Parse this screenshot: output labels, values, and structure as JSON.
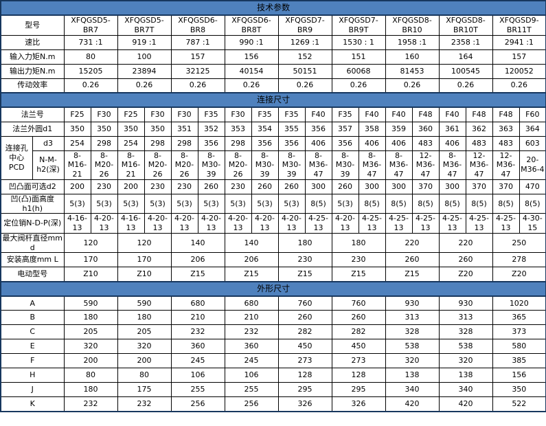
{
  "colors": {
    "section_bg": "#4f81bd",
    "frame_border": "#17375e",
    "grid_border": "#000000",
    "text": "#000000"
  },
  "table": {
    "data_columns": 18,
    "rows": [
      {
        "kind": "section",
        "name": "section-tech-params",
        "label": "技术参数"
      },
      {
        "kind": "row",
        "name": "row-model",
        "label": "型号",
        "span": 2,
        "cells": [
          "XFQGSD5-\nBR7",
          "XFQGSD5-\nBR7T",
          "XFQGSD6-\nBR8",
          "XFQGSD6-\nBR8T",
          "XFQGSD7-\nBR9",
          "XFQGSD7-\nBR9T",
          "XFQGSD8-\nBR10",
          "XFQGSD8-\nBR10T",
          "XFQGSD9-\nBR11T"
        ]
      },
      {
        "kind": "row",
        "name": "row-speed-ratio",
        "label": "速比",
        "span": 2,
        "cells": [
          "731 :1",
          "919 :1",
          "787 :1",
          "990 :1",
          "1269 :1",
          "1530 :  1",
          "1958 :1",
          "2358 :1",
          "2941 :1"
        ]
      },
      {
        "kind": "row",
        "name": "row-input-torque",
        "label": "输入力矩N.m",
        "span": 2,
        "cells": [
          "80",
          "100",
          "157",
          "156",
          "152",
          "151",
          "160",
          "164",
          "157"
        ]
      },
      {
        "kind": "row",
        "name": "row-output-torque",
        "label": "输出力矩N.m",
        "span": 2,
        "cells": [
          "15205",
          "23894",
          "32125",
          "40154",
          "50151",
          "60068",
          "81453",
          "100545",
          "120052"
        ]
      },
      {
        "kind": "row",
        "name": "row-efficiency",
        "label": "传动效率",
        "span": 2,
        "cells": [
          "0.26",
          "0.26",
          "0.26",
          "0.26",
          "0.26",
          "0.26",
          "0.26",
          "0.26",
          "0.26"
        ]
      },
      {
        "kind": "section",
        "name": "section-connection",
        "label": "连接尺寸"
      },
      {
        "kind": "row",
        "name": "row-flange-no",
        "label": "法兰号",
        "span": 1,
        "cells": [
          "F25",
          "F30",
          "F25",
          "F30",
          "F30",
          "F35",
          "F30",
          "F35",
          "F35",
          "F40",
          "F35",
          "F40",
          "F40",
          "F48",
          "F40",
          "F48",
          "F48",
          "F60"
        ]
      },
      {
        "kind": "row",
        "name": "row-flange-od",
        "label": "法兰外圆d1",
        "span": 1,
        "cells": [
          "350",
          "350",
          "350",
          "350",
          "351",
          "352",
          "353",
          "354",
          "355",
          "356",
          "357",
          "358",
          "359",
          "360",
          "361",
          "362",
          "363",
          "364"
        ]
      },
      {
        "kind": "row",
        "name": "row-d3",
        "group": "连接孔\n中心\nPCD",
        "label": "d3",
        "span": 1,
        "cells": [
          "254",
          "298",
          "254",
          "298",
          "298",
          "356",
          "298",
          "356",
          "356",
          "406",
          "356",
          "406",
          "406",
          "483",
          "406",
          "483",
          "483",
          "603"
        ]
      },
      {
        "kind": "row",
        "name": "row-nmh2",
        "sub": true,
        "label": "N-M-\nh2(深)",
        "span": 1,
        "cells": [
          "8-\nM16-\n21",
          "8-\nM20-\n26",
          "8-\nM16-\n21",
          "8-\nM20-\n26",
          "8-\nM20-\n26",
          "8-\nM30-\n39",
          "8-\nM20-\n26",
          "8-\nM30-\n39",
          "8-\nM30-\n39",
          "8-\nM36-\n47",
          "8-\nM30-\n39",
          "8-\nM36-\n47",
          "8-\nM36-\n47",
          "12-\nM36-\n47",
          "8-\nM36-\n47",
          "12-\nM36-\n47",
          "12-\nM36-\n47",
          "20-\nM36-4"
        ]
      },
      {
        "kind": "row",
        "name": "row-d2",
        "label": "凹凸面可选d2",
        "span": 1,
        "cells": [
          "200",
          "230",
          "200",
          "230",
          "230",
          "260",
          "230",
          "260",
          "260",
          "300",
          "260",
          "300",
          "300",
          "370",
          "300",
          "370",
          "370",
          "470"
        ]
      },
      {
        "kind": "row",
        "name": "row-h1",
        "label": "凹(凸)面高度\nh1(h)",
        "span": 1,
        "cells": [
          "5(3)",
          "5(3)",
          "5(3)",
          "5(3)",
          "5(3)",
          "5(3)",
          "5(3)",
          "5(3)",
          "5(3)",
          "8(5)",
          "5(3)",
          "8(5)",
          "8(5)",
          "8(5)",
          "8(5)",
          "8(5)",
          "8(5)",
          "8(5)"
        ]
      },
      {
        "kind": "row",
        "name": "row-pin",
        "label": "定位销N-D-P(深)",
        "span": 1,
        "cells": [
          "4-16-\n13",
          "4-20-\n13",
          "4-16-\n13",
          "4-20-\n13",
          "4-20-\n13",
          "4-20-\n13",
          "4-20-\n13",
          "4-20-\n13",
          "4-20-\n13",
          "4-25-\n13",
          "4-20-\n13",
          "4-25-\n13",
          "4-25-\n13",
          "4-25-\n13",
          "4-25-\n13",
          "4-25-\n13",
          "4-25-\n13",
          "4-30-\n15"
        ]
      },
      {
        "kind": "row",
        "name": "row-max-stem",
        "label": "最大阀杆直径mm\nd",
        "span": 2,
        "cells": [
          "120",
          "120",
          "140",
          "140",
          "180",
          "180",
          "220",
          "220",
          "250"
        ]
      },
      {
        "kind": "row",
        "name": "row-install-height",
        "label": "安装高度mm L",
        "span": 2,
        "cells": [
          "170",
          "170",
          "206",
          "206",
          "230",
          "230",
          "260",
          "260",
          "278"
        ]
      },
      {
        "kind": "row",
        "name": "row-motor-model",
        "label": "电动型号",
        "span": 2,
        "cells": [
          "Z10",
          "Z10",
          "Z15",
          "Z15",
          "Z15",
          "Z15",
          "Z15",
          "Z20",
          "Z20"
        ]
      },
      {
        "kind": "section",
        "name": "section-outline",
        "label": "外形尺寸"
      },
      {
        "kind": "row",
        "name": "row-dim-a",
        "label": "A",
        "span": 2,
        "cells": [
          "590",
          "590",
          "680",
          "680",
          "760",
          "760",
          "930",
          "930",
          "1020"
        ]
      },
      {
        "kind": "row",
        "name": "row-dim-b",
        "label": "B",
        "span": 2,
        "cells": [
          "180",
          "180",
          "210",
          "210",
          "260",
          "260",
          "313",
          "313",
          "365"
        ]
      },
      {
        "kind": "row",
        "name": "row-dim-c",
        "label": "C",
        "span": 2,
        "cells": [
          "205",
          "205",
          "232",
          "232",
          "282",
          "282",
          "328",
          "328",
          "373"
        ]
      },
      {
        "kind": "row",
        "name": "row-dim-e",
        "label": "E",
        "span": 2,
        "cells": [
          "320",
          "320",
          "360",
          "360",
          "450",
          "450",
          "538",
          "538",
          "580"
        ]
      },
      {
        "kind": "row",
        "name": "row-dim-f",
        "label": "F",
        "span": 2,
        "cells": [
          "200",
          "200",
          "245",
          "245",
          "273",
          "273",
          "320",
          "320",
          "385"
        ]
      },
      {
        "kind": "row",
        "name": "row-dim-h",
        "label": "H",
        "span": 2,
        "cells": [
          "80",
          "80",
          "106",
          "106",
          "128",
          "128",
          "138",
          "138",
          "156"
        ]
      },
      {
        "kind": "row",
        "name": "row-dim-j",
        "label": "J",
        "span": 2,
        "cells": [
          "180",
          "175",
          "255",
          "255",
          "295",
          "295",
          "340",
          "340",
          "350"
        ]
      },
      {
        "kind": "row",
        "name": "row-dim-k",
        "label": "K",
        "span": 2,
        "cells": [
          "232",
          "232",
          "256",
          "256",
          "326",
          "326",
          "420",
          "420",
          "522"
        ]
      }
    ]
  }
}
